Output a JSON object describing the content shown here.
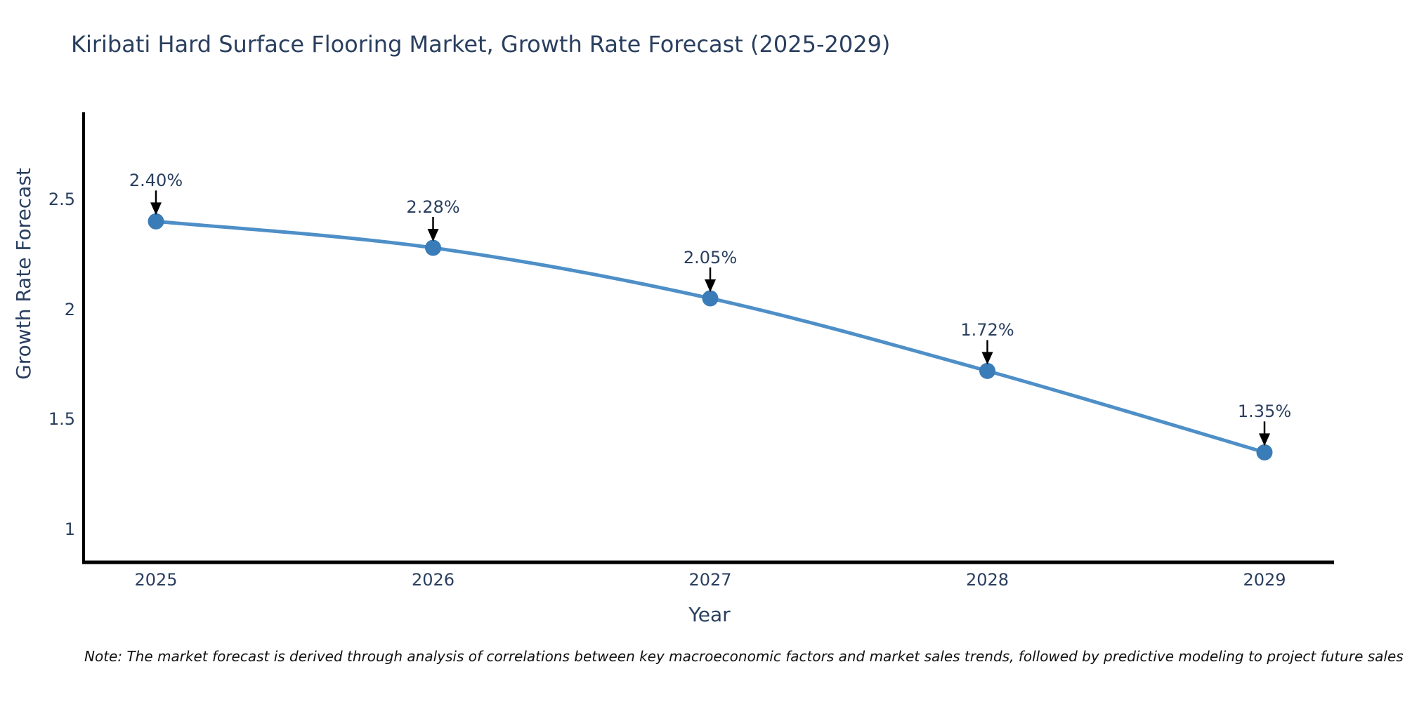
{
  "title": "Kiribati Hard Surface Flooring Market, Growth Rate Forecast (2025-2029)",
  "note": "Note: The market forecast is derived through analysis of correlations between key macroeconomic factors and market sales trends, followed by predictive modeling to project future sales",
  "chart_data": {
    "type": "line",
    "title": "Kiribati Hard Surface Flooring Market, Growth Rate Forecast (2025-2029)",
    "xlabel": "Year",
    "ylabel": "Growth Rate Forecast",
    "categories": [
      "2025",
      "2026",
      "2027",
      "2028",
      "2029"
    ],
    "series": [
      {
        "name": "Growth Rate Forecast",
        "values": [
          2.4,
          2.28,
          2.05,
          1.72,
          1.35
        ],
        "point_labels": [
          "2.40%",
          "2.28%",
          "2.05%",
          "1.72%",
          "1.35%"
        ]
      }
    ],
    "yticks": [
      2.5,
      2,
      1.5,
      1
    ],
    "ylim": [
      0.85,
      2.92
    ],
    "line_shape": "spline",
    "grid": false,
    "legend_visible": false,
    "annotations_style": "label-with-down-arrow",
    "colors": {
      "line": "#4e8fc7",
      "marker": "#3a7cb8",
      "axis": "#000000",
      "arrow": "#000000",
      "text": "#2a3f5f"
    }
  }
}
